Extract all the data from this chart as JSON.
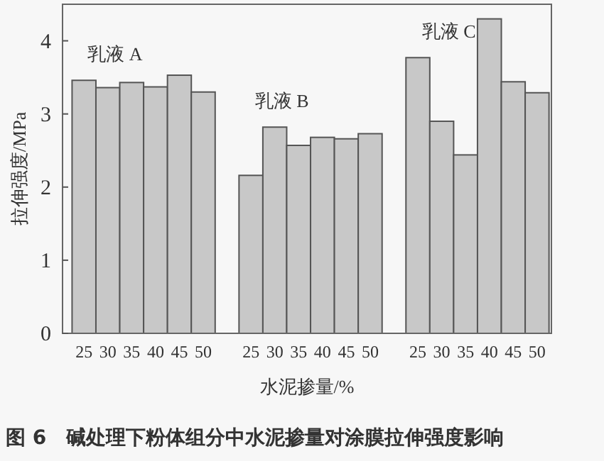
{
  "chart_data": {
    "type": "bar",
    "title": "图 6　碱处理下粉体组分中水泥掺量对涂膜拉伸强度影响",
    "xlabel": "水泥掺量/%",
    "ylabel": "拉伸强度/MPa",
    "categories": [
      "25",
      "30",
      "35",
      "40",
      "45",
      "50",
      null,
      "25",
      "30",
      "35",
      "40",
      "45",
      "50",
      null,
      "25",
      "30",
      "35",
      "40",
      "45",
      "50"
    ],
    "values": [
      3.46,
      3.36,
      3.43,
      3.37,
      3.53,
      3.3,
      null,
      2.16,
      2.82,
      2.57,
      2.68,
      2.66,
      2.73,
      null,
      3.77,
      2.9,
      2.44,
      4.3,
      3.44,
      3.29
    ],
    "color": "#c8c8c8",
    "ylim": [
      0,
      4.5
    ],
    "yticks": [
      0,
      1,
      2,
      3,
      4
    ],
    "annotations": [
      "乳液 A",
      "乳液 B",
      "乳液 C"
    ],
    "grid": false
  }
}
